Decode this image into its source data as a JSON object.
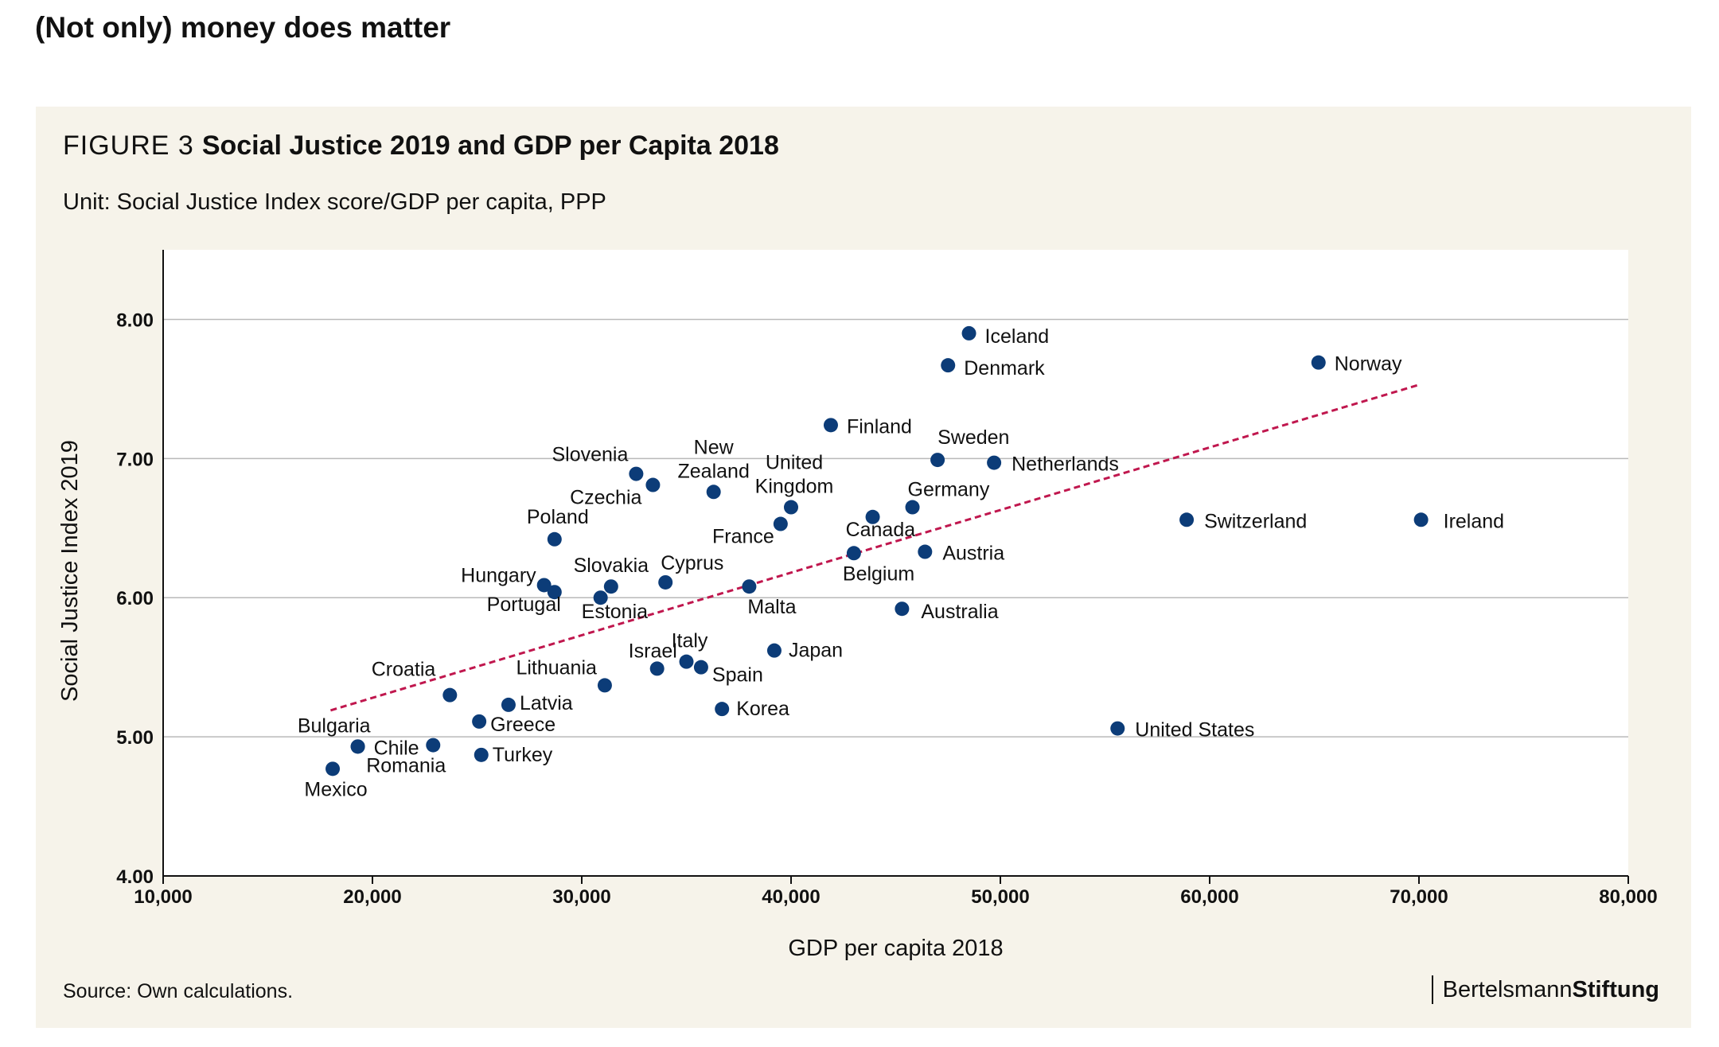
{
  "page_heading": "(Not only) money does matter",
  "figure": {
    "label": "FIGURE 3",
    "title": "Social Justice 2019 and GDP per Capita 2018",
    "unit": "Unit: Social Justice Index score/GDP per capita, PPP",
    "source": "Source: Own calculations.",
    "brand_regular": "Bertelsmann",
    "brand_bold": "Stiftung"
  },
  "colors": {
    "point": "#0c3c78",
    "trendline": "#c0174e",
    "grid": "#b9b9b9",
    "panel": "#f6f3ea"
  },
  "chart_data": {
    "type": "scatter",
    "title": "Social Justice 2019 and GDP per Capita 2018",
    "xlabel": "GDP per capita 2018",
    "ylabel": "Social Justice Index 2019",
    "xlim": [
      10000,
      80000
    ],
    "ylim": [
      4.0,
      8.5
    ],
    "x_ticks": [
      10000,
      20000,
      30000,
      40000,
      50000,
      60000,
      70000,
      80000
    ],
    "x_tick_labels": [
      "10,000",
      "20,000",
      "30,000",
      "40,000",
      "50,000",
      "60,000",
      "70,000",
      "80,000"
    ],
    "y_ticks": [
      4,
      5,
      6,
      7,
      8
    ],
    "y_tick_labels": [
      "4.00",
      "5.00",
      "6.00",
      "7.00",
      "8.00"
    ],
    "grid": "horizontal",
    "trendline": {
      "x": [
        18000,
        70000
      ],
      "y": [
        5.19,
        7.53
      ]
    },
    "points": [
      {
        "name": "Iceland",
        "x": 48500,
        "y": 7.9
      },
      {
        "name": "Denmark",
        "x": 47500,
        "y": 7.67
      },
      {
        "name": "Norway",
        "x": 65200,
        "y": 7.69
      },
      {
        "name": "Finland",
        "x": 41900,
        "y": 7.24
      },
      {
        "name": "Sweden",
        "x": 47000,
        "y": 6.99
      },
      {
        "name": "Netherlands",
        "x": 49700,
        "y": 6.97
      },
      {
        "name": "Slovenia",
        "x": 32600,
        "y": 6.89
      },
      {
        "name": "Czechia",
        "x": 33400,
        "y": 6.81
      },
      {
        "name": "New Zealand",
        "x": 36300,
        "y": 6.76
      },
      {
        "name": "United Kingdom",
        "x": 40000,
        "y": 6.65
      },
      {
        "name": "Germany",
        "x": 45800,
        "y": 6.65
      },
      {
        "name": "Canada",
        "x": 43900,
        "y": 6.58
      },
      {
        "name": "France",
        "x": 39500,
        "y": 6.53
      },
      {
        "name": "Switzerland",
        "x": 58900,
        "y": 6.56
      },
      {
        "name": "Ireland",
        "x": 70100,
        "y": 6.56
      },
      {
        "name": "Poland",
        "x": 28700,
        "y": 6.42
      },
      {
        "name": "Austria",
        "x": 46400,
        "y": 6.33
      },
      {
        "name": "Belgium",
        "x": 43000,
        "y": 6.32
      },
      {
        "name": "Cyprus",
        "x": 34000,
        "y": 6.11
      },
      {
        "name": "Hungary",
        "x": 28200,
        "y": 6.09
      },
      {
        "name": "Slovakia",
        "x": 31400,
        "y": 6.08
      },
      {
        "name": "Malta",
        "x": 38000,
        "y": 6.08
      },
      {
        "name": "Portugal",
        "x": 28700,
        "y": 6.04
      },
      {
        "name": "Estonia",
        "x": 30900,
        "y": 6.0
      },
      {
        "name": "Australia",
        "x": 45300,
        "y": 5.92
      },
      {
        "name": "Japan",
        "x": 39200,
        "y": 5.62
      },
      {
        "name": "Italy",
        "x": 35000,
        "y": 5.54
      },
      {
        "name": "Spain",
        "x": 35700,
        "y": 5.5
      },
      {
        "name": "Israel",
        "x": 33600,
        "y": 5.49
      },
      {
        "name": "Lithuania",
        "x": 31100,
        "y": 5.37
      },
      {
        "name": "Croatia",
        "x": 23700,
        "y": 5.3
      },
      {
        "name": "Latvia",
        "x": 26500,
        "y": 5.23
      },
      {
        "name": "Korea",
        "x": 36700,
        "y": 5.2
      },
      {
        "name": "Greece",
        "x": 25100,
        "y": 5.11
      },
      {
        "name": "United States",
        "x": 55600,
        "y": 5.06
      },
      {
        "name": "Chile",
        "x": 19300,
        "y": 4.93
      },
      {
        "name": "Bulgaria",
        "x": 19300,
        "y": 4.93
      },
      {
        "name": "Romania",
        "x": 22900,
        "y": 4.94
      },
      {
        "name": "Turkey",
        "x": 25200,
        "y": 4.87
      },
      {
        "name": "Mexico",
        "x": 18100,
        "y": 4.77
      }
    ]
  }
}
